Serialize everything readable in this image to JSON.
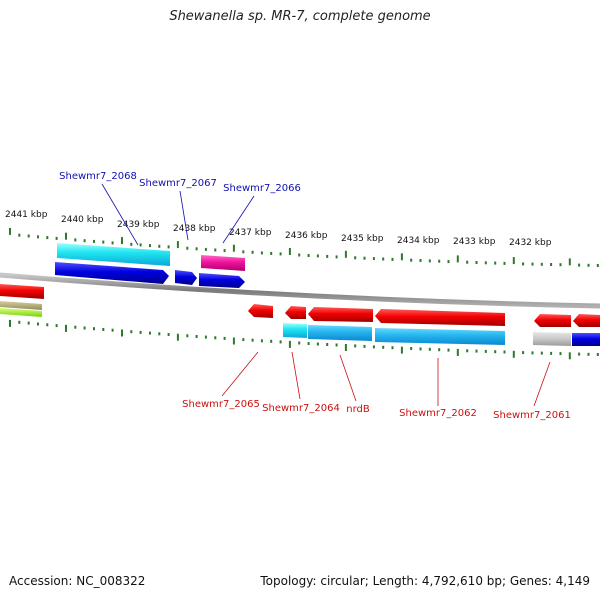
{
  "title": "Shewanella sp. MR-7, complete genome",
  "accession": "Accession: NC_008322",
  "summary": "Topology: circular; Length: 4,792,610 bp; Genes: 4,149",
  "colors": {
    "label_forward": "#1010b0",
    "label_reverse": "#cc1010",
    "tick": "#2d7a2d",
    "backbone": "#888888"
  },
  "ticks": [
    "2441 kbp",
    "2440 kbp",
    "2439 kbp",
    "2438 kbp",
    "2437 kbp",
    "2436 kbp",
    "2435 kbp",
    "2434 kbp",
    "2433 kbp",
    "2432 kbp"
  ],
  "genes_forward": [
    {
      "label": "Shewmr7_2068"
    },
    {
      "label": "Shewmr7_2067"
    },
    {
      "label": "Shewmr7_2066"
    }
  ],
  "genes_reverse": [
    {
      "label": "Shewmr7_2065"
    },
    {
      "label": "Shewmr7_2064"
    },
    {
      "label": "nrdB"
    },
    {
      "label": "Shewmr7_2062"
    },
    {
      "label": "Shewmr7_2061"
    }
  ]
}
